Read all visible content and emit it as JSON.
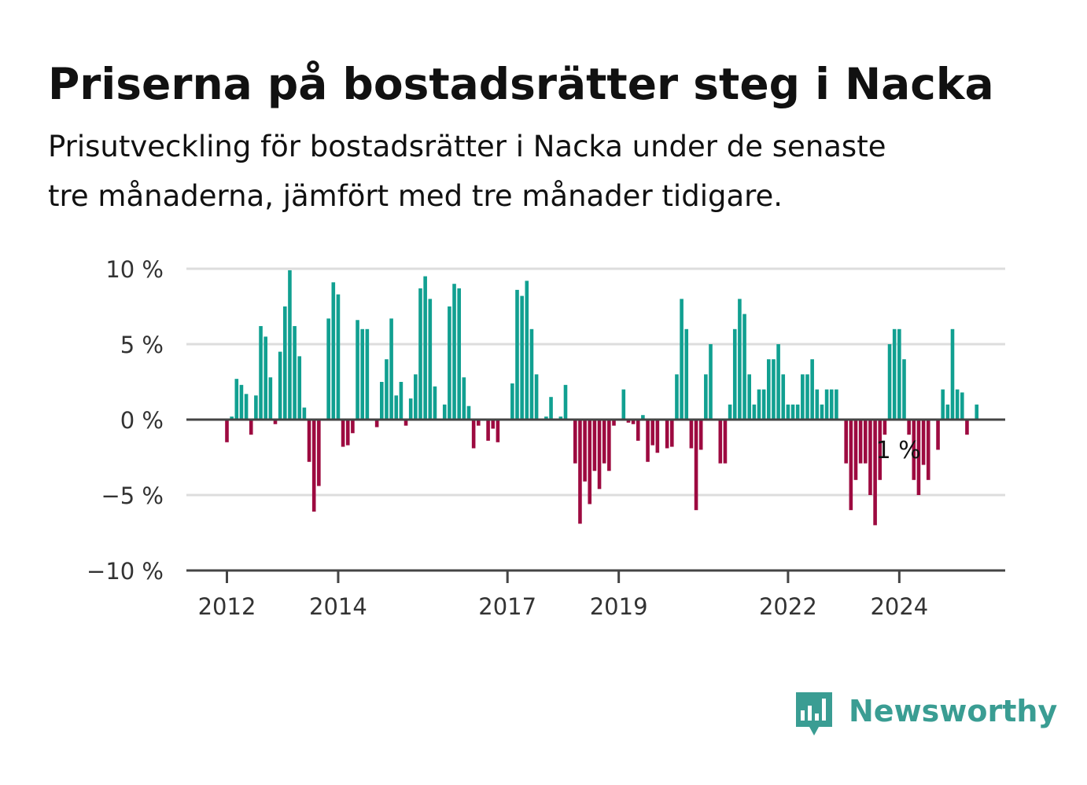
{
  "header": {
    "title": "Priserna på bostadsrätter steg i Nacka",
    "subtitle_line1": "Prisutveckling för bostadsrätter i Nacka under de senaste",
    "subtitle_line2": "tre månaderna, jämfört med tre månader tidigare."
  },
  "brand": {
    "name": "Newsworthy",
    "color": "#3a9d93"
  },
  "chart_data": {
    "type": "bar",
    "unit": "%",
    "ylim": [
      -10,
      10
    ],
    "grid": true,
    "y_ticks": [
      {
        "value": 10,
        "label": "10 %"
      },
      {
        "value": 5,
        "label": "5 %"
      },
      {
        "value": 0,
        "label": "0 %"
      },
      {
        "value": -5,
        "label": "−5 %"
      },
      {
        "value": -10,
        "label": "−10 %"
      }
    ],
    "x_ticks": [
      {
        "index": 0,
        "label": "2012"
      },
      {
        "index": 23,
        "label": "2014"
      },
      {
        "index": 58,
        "label": "2017"
      },
      {
        "index": 81,
        "label": "2019"
      },
      {
        "index": 116,
        "label": "2022"
      },
      {
        "index": 139,
        "label": "2024"
      }
    ],
    "colors": {
      "positive": "#11a091",
      "negative": "#9d0a40",
      "grid": "#dddddd",
      "axis": "#444444"
    },
    "annotation": {
      "index": 145,
      "label": "1 %"
    },
    "values": [
      -1.5,
      0.2,
      2.7,
      2.3,
      1.7,
      -1,
      1.6,
      6.2,
      5.5,
      2.8,
      -0.3,
      4.5,
      7.5,
      9.9,
      6.2,
      4.2,
      0.8,
      -2.8,
      -6.1,
      -4.4,
      0,
      6.7,
      9.1,
      8.3,
      -1.8,
      -1.7,
      -0.9,
      6.6,
      6,
      6,
      0,
      -0.5,
      2.5,
      4,
      6.7,
      1.6,
      2.5,
      -0.4,
      1.4,
      3,
      8.7,
      9.5,
      8,
      2.2,
      0,
      1,
      7.5,
      9,
      8.7,
      2.8,
      0.9,
      -1.9,
      -0.4,
      0,
      -1.4,
      -0.6,
      -1.5,
      0,
      0,
      2.4,
      8.6,
      8.2,
      9.2,
      6,
      3,
      0,
      0.2,
      1.5,
      0,
      0.2,
      2.3,
      0,
      -2.9,
      -6.9,
      -4.1,
      -5.6,
      -3.4,
      -4.6,
      -2.9,
      -3.4,
      -0.4,
      0,
      2,
      -0.2,
      -0.3,
      -1.4,
      0.3,
      -2.8,
      -1.7,
      -2.2,
      0,
      -1.9,
      -1.8,
      3,
      8,
      6,
      -1.9,
      -6,
      -2,
      3,
      5,
      0,
      -2.9,
      -2.9,
      1,
      6,
      8,
      7,
      3,
      1,
      2,
      2,
      4,
      4,
      5,
      3,
      1,
      1,
      1,
      3,
      3,
      4,
      2,
      1,
      2,
      2,
      2,
      0,
      -2.9,
      -6,
      -4,
      -2.9,
      -2.9,
      -5,
      -7,
      -4,
      -1,
      5,
      6,
      6,
      4,
      -1,
      -4,
      -5,
      -3,
      -4,
      0,
      -2,
      2,
      1,
      6,
      2,
      1.8,
      -1,
      0,
      1
    ]
  }
}
